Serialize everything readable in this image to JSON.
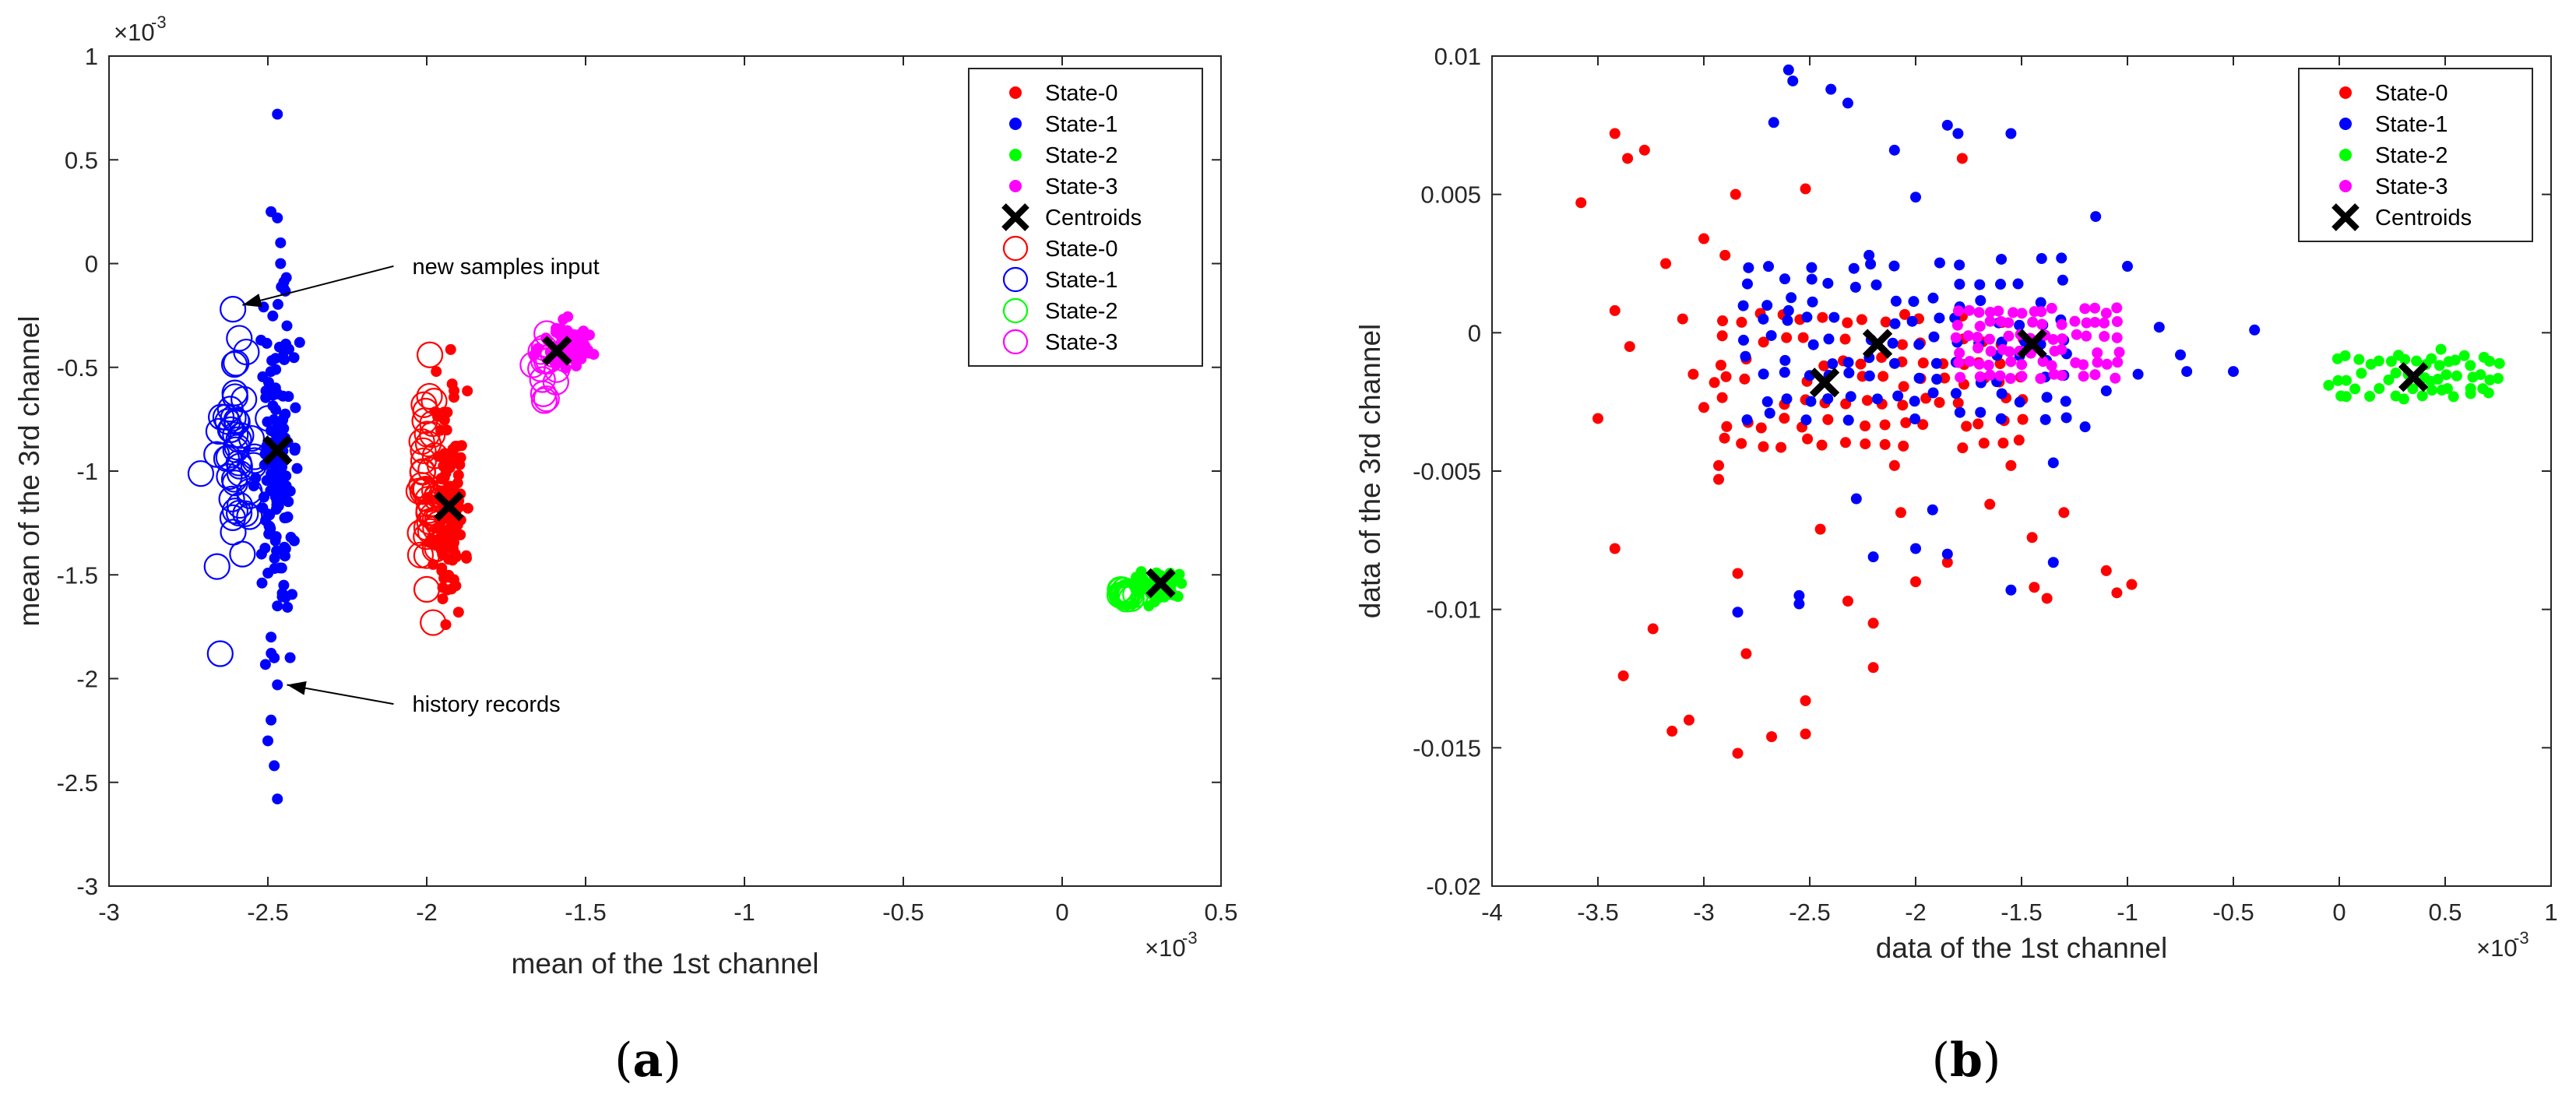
{
  "chart_data": [
    {
      "type": "scatter",
      "panel_label": "a",
      "xlabel": "mean of the 1st channel",
      "ylabel": "mean of the 3rd channel",
      "xlim": [
        -3,
        0.5
      ],
      "ylim": [
        -3,
        1
      ],
      "xticks": [
        "-3",
        "-2.5",
        "-2",
        "-1.5",
        "-1",
        "-0.5",
        "0",
        "0.5"
      ],
      "yticks": [
        "-3",
        "-2.5",
        "-2",
        "-1.5",
        "-1",
        "-0.5",
        "0",
        "0.5",
        "1"
      ],
      "x_exponent": "×10",
      "x_exponent_power": "-3",
      "y_exponent": "×10",
      "y_exponent_power": "-3",
      "legend_position": "top-right",
      "legend": [
        {
          "label": "State-0",
          "marker": "dot",
          "color": "#ff0000"
        },
        {
          "label": "State-1",
          "marker": "dot",
          "color": "#0000ff"
        },
        {
          "label": "State-2",
          "marker": "dot",
          "color": "#00ff00"
        },
        {
          "label": "State-3",
          "marker": "dot",
          "color": "#ff00ff"
        },
        {
          "label": "Centroids",
          "marker": "x",
          "color": "#000000"
        },
        {
          "label": "State-0",
          "marker": "circle",
          "color": "#ff0000"
        },
        {
          "label": "State-1",
          "marker": "circle",
          "color": "#0000ff"
        },
        {
          "label": "State-2",
          "marker": "circle",
          "color": "#00ff00"
        },
        {
          "label": "State-3",
          "marker": "circle",
          "color": "#ff00ff"
        }
      ],
      "annotations": [
        {
          "text": "new samples input",
          "text_at": [
            -2.07,
            -0.05
          ],
          "arrow_to": [
            -2.58,
            -0.2
          ]
        },
        {
          "text": "history records",
          "text_at": [
            -2.07,
            -2.16
          ],
          "arrow_to": [
            -2.44,
            -2.03
          ]
        }
      ],
      "series": [
        {
          "name": "State-0",
          "marker": "dot",
          "color": "#ff0000",
          "cluster": {
            "cx": -1.93,
            "cy": -1.15,
            "sx": 0.025,
            "sy": 0.27,
            "n": 110,
            "seed": 11
          },
          "points": [
            [
              -1.97,
              -0.52
            ],
            [
              -1.92,
              -0.58
            ],
            [
              -1.9,
              -1.68
            ],
            [
              -1.94,
              -1.74
            ]
          ]
        },
        {
          "name": "State-1",
          "marker": "dot",
          "color": "#0000ff",
          "cluster": {
            "cx": -2.47,
            "cy": -0.95,
            "sx": 0.025,
            "sy": 0.35,
            "n": 140,
            "seed": 22
          },
          "points": [
            [
              -2.47,
              0.72
            ],
            [
              -2.49,
              0.25
            ],
            [
              -2.47,
              0.22
            ],
            [
              -2.46,
              0.1
            ],
            [
              -2.46,
              0.0
            ],
            [
              -2.45,
              -0.12
            ],
            [
              -2.44,
              -0.3
            ],
            [
              -2.45,
              -1.55
            ],
            [
              -2.47,
              -1.65
            ],
            [
              -2.49,
              -1.8
            ],
            [
              -2.48,
              -1.9
            ],
            [
              -2.47,
              -2.03
            ],
            [
              -2.49,
              -2.2
            ],
            [
              -2.5,
              -2.3
            ],
            [
              -2.48,
              -2.42
            ],
            [
              -2.47,
              -2.58
            ],
            [
              -2.4,
              -0.38
            ],
            [
              -2.52,
              -1.4
            ]
          ]
        },
        {
          "name": "State-2",
          "marker": "dot",
          "color": "#00ff00",
          "cluster": {
            "cx": 0.3,
            "cy": -1.56,
            "sx": 0.035,
            "sy": 0.04,
            "n": 45,
            "seed": 33
          },
          "points": []
        },
        {
          "name": "State-3",
          "marker": "dot",
          "color": "#ff00ff",
          "cluster": {
            "cx": -1.56,
            "cy": -0.4,
            "sx": 0.04,
            "sy": 0.06,
            "n": 80,
            "seed": 44
          },
          "points": []
        },
        {
          "name": "State-0 (new)",
          "marker": "circle",
          "color": "#ff0000",
          "cluster": {
            "cx": -1.99,
            "cy": -1.12,
            "sx": 0.02,
            "sy": 0.2,
            "n": 45,
            "seed": 55
          },
          "points": [
            [
              -1.99,
              -0.44
            ],
            [
              -1.98,
              -1.73
            ],
            [
              -2.0,
              -1.57
            ]
          ]
        },
        {
          "name": "State-1 (new)",
          "marker": "circle",
          "color": "#0000ff",
          "cluster": {
            "cx": -2.6,
            "cy": -0.95,
            "sx": 0.035,
            "sy": 0.2,
            "n": 45,
            "seed": 66
          },
          "points": [
            [
              -2.61,
              -0.22
            ],
            [
              -2.59,
              -0.36
            ],
            [
              -2.6,
              -0.48
            ],
            [
              -2.66,
              -1.46
            ],
            [
              -2.65,
              -1.88
            ],
            [
              -2.58,
              -1.4
            ]
          ]
        },
        {
          "name": "State-2 (new)",
          "marker": "circle",
          "color": "#00ff00",
          "cluster": {
            "cx": 0.2,
            "cy": -1.59,
            "sx": 0.015,
            "sy": 0.015,
            "n": 22,
            "seed": 77
          },
          "points": []
        },
        {
          "name": "State-3 (new)",
          "marker": "circle",
          "color": "#ff00ff",
          "cluster": {
            "cx": -1.62,
            "cy": -0.48,
            "sx": 0.02,
            "sy": 0.07,
            "n": 14,
            "seed": 88
          },
          "points": [
            [
              -1.63,
              -0.66
            ]
          ]
        },
        {
          "name": "Centroids",
          "marker": "x",
          "color": "#000000",
          "points": [
            [
              -1.93,
              -1.17
            ],
            [
              -2.47,
              -0.9
            ],
            [
              0.31,
              -1.54
            ],
            [
              -1.59,
              -0.42
            ]
          ]
        }
      ]
    },
    {
      "type": "scatter",
      "panel_label": "b",
      "xlabel": "data of the 1st channel",
      "ylabel": "data of the 3rd channel",
      "xlim": [
        -4,
        1
      ],
      "ylim": [
        -0.02,
        0.01
      ],
      "xticks": [
        "-4",
        "-3.5",
        "-3",
        "-2.5",
        "-2",
        "-1.5",
        "-1",
        "-0.5",
        "0",
        "0.5",
        "1"
      ],
      "yticks": [
        "-0.02",
        "-0.015",
        "-0.01",
        "-0.005",
        "0",
        "0.005",
        "0.01"
      ],
      "x_exponent": "×10",
      "x_exponent_power": "-3",
      "legend_position": "top-right",
      "legend": [
        {
          "label": "State-0",
          "marker": "dot",
          "color": "#ff0000"
        },
        {
          "label": "State-1",
          "marker": "dot",
          "color": "#0000ff"
        },
        {
          "label": "State-2",
          "marker": "dot",
          "color": "#00ff00"
        },
        {
          "label": "State-3",
          "marker": "dot",
          "color": "#ff00ff"
        },
        {
          "label": "Centroids",
          "marker": "x",
          "color": "#000000"
        }
      ],
      "series": [
        {
          "name": "State-0",
          "marker": "dot",
          "color": "#ff0000",
          "grid_cluster": {
            "x0": -2.9,
            "x1": -1.5,
            "y0": -0.004,
            "y1": 0.0005,
            "nx": 16,
            "ny": 7,
            "jitter_x": 0.02,
            "jitter_y": 0.0002,
            "seed": 101
          },
          "points": [
            [
              -3.58,
              0.0047
            ],
            [
              -3.42,
              0.0072
            ],
            [
              -3.36,
              0.0063
            ],
            [
              -3.28,
              0.0066
            ],
            [
              -3.42,
              0.0008
            ],
            [
              -3.35,
              -0.0005
            ],
            [
              -3.5,
              -0.0031
            ],
            [
              -3.18,
              0.0025
            ],
            [
              -3.1,
              0.0005
            ],
            [
              -3.05,
              -0.0015
            ],
            [
              -3.0,
              0.0034
            ],
            [
              -2.95,
              -0.0018
            ],
            [
              -2.93,
              -0.0048
            ],
            [
              -2.93,
              -0.0053
            ],
            [
              -2.9,
              0.0028
            ],
            [
              -2.85,
              0.005
            ],
            [
              -2.84,
              -0.0087
            ],
            [
              -2.8,
              -0.0116
            ],
            [
              -3.42,
              -0.0078
            ],
            [
              -3.38,
              -0.0124
            ],
            [
              -3.24,
              -0.0107
            ],
            [
              -3.15,
              -0.0144
            ],
            [
              -3.07,
              -0.014
            ],
            [
              -2.84,
              -0.0152
            ],
            [
              -2.68,
              -0.0146
            ],
            [
              -2.52,
              -0.0145
            ],
            [
              -2.52,
              -0.0133
            ],
            [
              -2.52,
              0.0052
            ],
            [
              -2.45,
              -0.0071
            ],
            [
              -2.32,
              -0.0097
            ],
            [
              -2.2,
              -0.0105
            ],
            [
              -2.2,
              -0.0121
            ],
            [
              -2.07,
              -0.0065
            ],
            [
              -2.0,
              -0.009
            ],
            [
              -1.85,
              -0.0083
            ],
            [
              -1.65,
              -0.0062
            ],
            [
              -1.55,
              -0.0048
            ],
            [
              -1.45,
              -0.0074
            ],
            [
              -1.44,
              -0.0092
            ],
            [
              -1.38,
              -0.0096
            ],
            [
              -1.1,
              -0.0086
            ],
            [
              -1.05,
              -0.0094
            ],
            [
              -0.98,
              -0.0091
            ],
            [
              -1.78,
              0.0063
            ],
            [
              -1.3,
              -0.0065
            ],
            [
              -2.1,
              -0.0048
            ],
            [
              -3.0,
              -0.0027
            ]
          ]
        },
        {
          "name": "State-1",
          "marker": "dot",
          "color": "#0000ff",
          "grid_cluster": {
            "x0": -2.8,
            "x1": -1.3,
            "y0": -0.003,
            "y1": 0.0025,
            "nx": 16,
            "ny": 9,
            "jitter_x": 0.02,
            "jitter_y": 0.0002,
            "seed": 202
          },
          "points": [
            [
              -2.67,
              0.0076
            ],
            [
              -2.6,
              0.0095
            ],
            [
              -2.58,
              0.0091
            ],
            [
              -2.4,
              0.0088
            ],
            [
              -2.32,
              0.0083
            ],
            [
              -2.22,
              0.0028
            ],
            [
              -2.1,
              0.0066
            ],
            [
              -2.0,
              0.0049
            ],
            [
              -1.85,
              0.0075
            ],
            [
              -1.8,
              0.0072
            ],
            [
              -1.55,
              0.0072
            ],
            [
              -2.6,
              0.0008
            ],
            [
              -1.15,
              0.0042
            ],
            [
              -1.0,
              0.0024
            ],
            [
              -0.85,
              0.0002
            ],
            [
              -0.75,
              -0.0008
            ],
            [
              -0.72,
              -0.0014
            ],
            [
              -0.5,
              -0.0014
            ],
            [
              -0.4,
              0.0001
            ],
            [
              -0.95,
              -0.0015
            ],
            [
              -1.1,
              -0.0021
            ],
            [
              -1.2,
              -0.0034
            ],
            [
              -1.35,
              -0.0047
            ],
            [
              -1.35,
              -0.0083
            ],
            [
              -1.55,
              -0.0093
            ],
            [
              -1.92,
              -0.0064
            ],
            [
              -2.0,
              -0.0078
            ],
            [
              -2.2,
              -0.0081
            ],
            [
              -2.28,
              -0.006
            ],
            [
              -2.55,
              -0.0095
            ],
            [
              -2.55,
              -0.0098
            ],
            [
              -2.84,
              -0.0101
            ],
            [
              -1.85,
              -0.008
            ]
          ]
        },
        {
          "name": "State-2",
          "marker": "dot",
          "color": "#00ff00",
          "grid_cluster": {
            "x0": 0.0,
            "x1": 0.75,
            "y0": -0.0022,
            "y1": -0.001,
            "nx": 20,
            "ny": 3,
            "jitter_x": 0.015,
            "jitter_y": 0.0002,
            "seed": 303
          },
          "points": [
            [
              -0.05,
              -0.0019
            ],
            [
              0.48,
              -0.0006
            ],
            [
              0.62,
              -0.0022
            ]
          ]
        },
        {
          "name": "State-3",
          "marker": "dot",
          "color": "#ff00ff",
          "grid_cluster": {
            "x0": -1.8,
            "x1": -1.05,
            "y0": -0.0016,
            "y1": 0.0008,
            "nx": 16,
            "ny": 6,
            "jitter_x": 0.012,
            "jitter_y": 0.0001,
            "seed": 404
          },
          "points": []
        },
        {
          "name": "Centroids",
          "marker": "x",
          "color": "#000000",
          "points": [
            [
              -2.43,
              -0.0018
            ],
            [
              -2.18,
              -0.0004
            ],
            [
              -1.45,
              -0.0004
            ],
            [
              0.35,
              -0.0016
            ]
          ]
        }
      ]
    }
  ],
  "captions": {
    "a": "a",
    "b": "b"
  }
}
